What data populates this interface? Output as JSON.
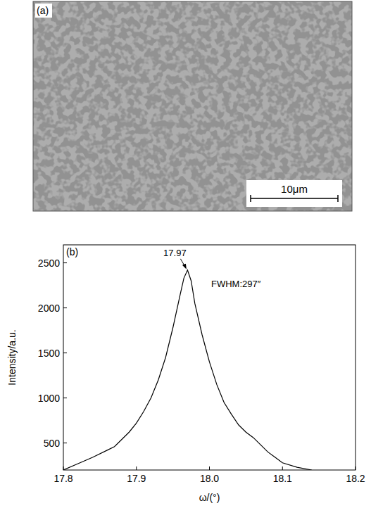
{
  "image_panel": {
    "label": "(a)",
    "scale_bar_label": "10μm"
  },
  "chart_data": {
    "type": "line",
    "panel_label": "(b)",
    "x_label": "ω/(°)",
    "y_label": "Intensity/a.u.",
    "xlim": [
      17.8,
      18.2
    ],
    "xticks": [
      17.8,
      17.9,
      {
        "value": 18,
        "label": "18.0"
      },
      18.1,
      18.2
    ],
    "ylim": [
      200,
      2700
    ],
    "yticks": [
      500,
      1000,
      1500,
      2000,
      2500
    ],
    "color": "#000000",
    "x": [
      17.8,
      17.82,
      17.84,
      17.86,
      17.87,
      17.88,
      17.89,
      17.9,
      17.91,
      17.92,
      17.93,
      17.94,
      17.95,
      17.96,
      17.965,
      17.97,
      17.975,
      17.98,
      17.99,
      18.0,
      18.01,
      18.02,
      18.03,
      18.04,
      18.05,
      18.06,
      18.07,
      18.08,
      18.09,
      18.1,
      18.12,
      18.14
    ],
    "values": [
      200,
      270,
      340,
      420,
      460,
      540,
      620,
      720,
      850,
      1000,
      1200,
      1450,
      1780,
      2150,
      2330,
      2420,
      2300,
      2050,
      1700,
      1400,
      1150,
      950,
      820,
      700,
      620,
      560,
      480,
      400,
      340,
      280,
      230,
      200
    ],
    "annotations": [
      {
        "text": "17.97",
        "x": 17.97,
        "y": 2420
      },
      {
        "text": "FWHM:297″"
      }
    ]
  }
}
